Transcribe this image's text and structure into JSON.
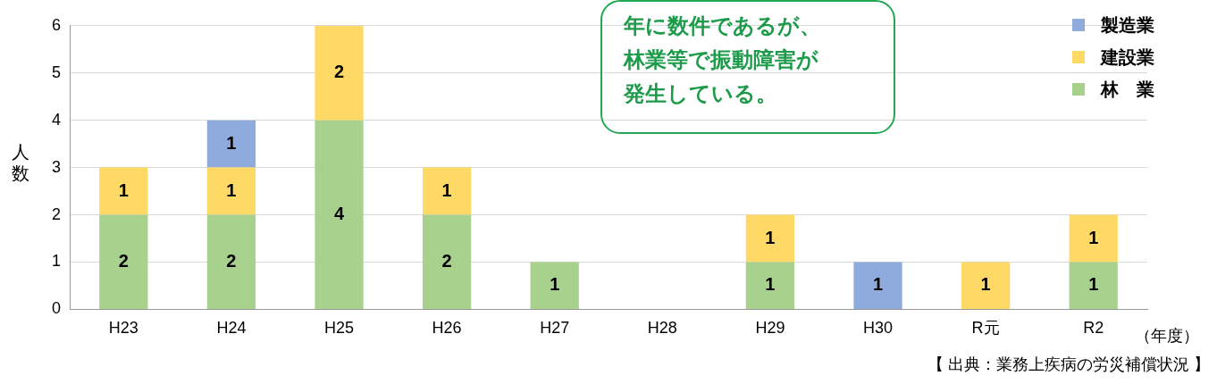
{
  "chart_data": {
    "type": "bar",
    "stacked": true,
    "categories": [
      "H23",
      "H24",
      "H25",
      "H26",
      "H27",
      "H28",
      "H29",
      "H30",
      "R元",
      "R2"
    ],
    "series": [
      {
        "name": "林　業",
        "color": "#a9d18e",
        "values": [
          2,
          2,
          4,
          2,
          1,
          null,
          1,
          null,
          null,
          1
        ]
      },
      {
        "name": "建設業",
        "color": "#ffd966",
        "values": [
          1,
          1,
          2,
          1,
          null,
          null,
          1,
          null,
          1,
          1
        ]
      },
      {
        "name": "製造業",
        "color": "#8faadc",
        "values": [
          null,
          1,
          null,
          null,
          null,
          null,
          null,
          1,
          null,
          null
        ]
      }
    ],
    "ylim": [
      0,
      6
    ],
    "yticks": [
      0,
      1,
      2,
      3,
      4,
      5,
      6
    ],
    "grid": "y",
    "data_labels": true,
    "legend": "top right",
    "ylabel": "人数",
    "xlabel": "（年度）",
    "annotations": [
      "年に数件であるが、林業等で振動障害が発生している。",
      "【 出典：業務上疾病の労災補償状況 】"
    ]
  }
}
